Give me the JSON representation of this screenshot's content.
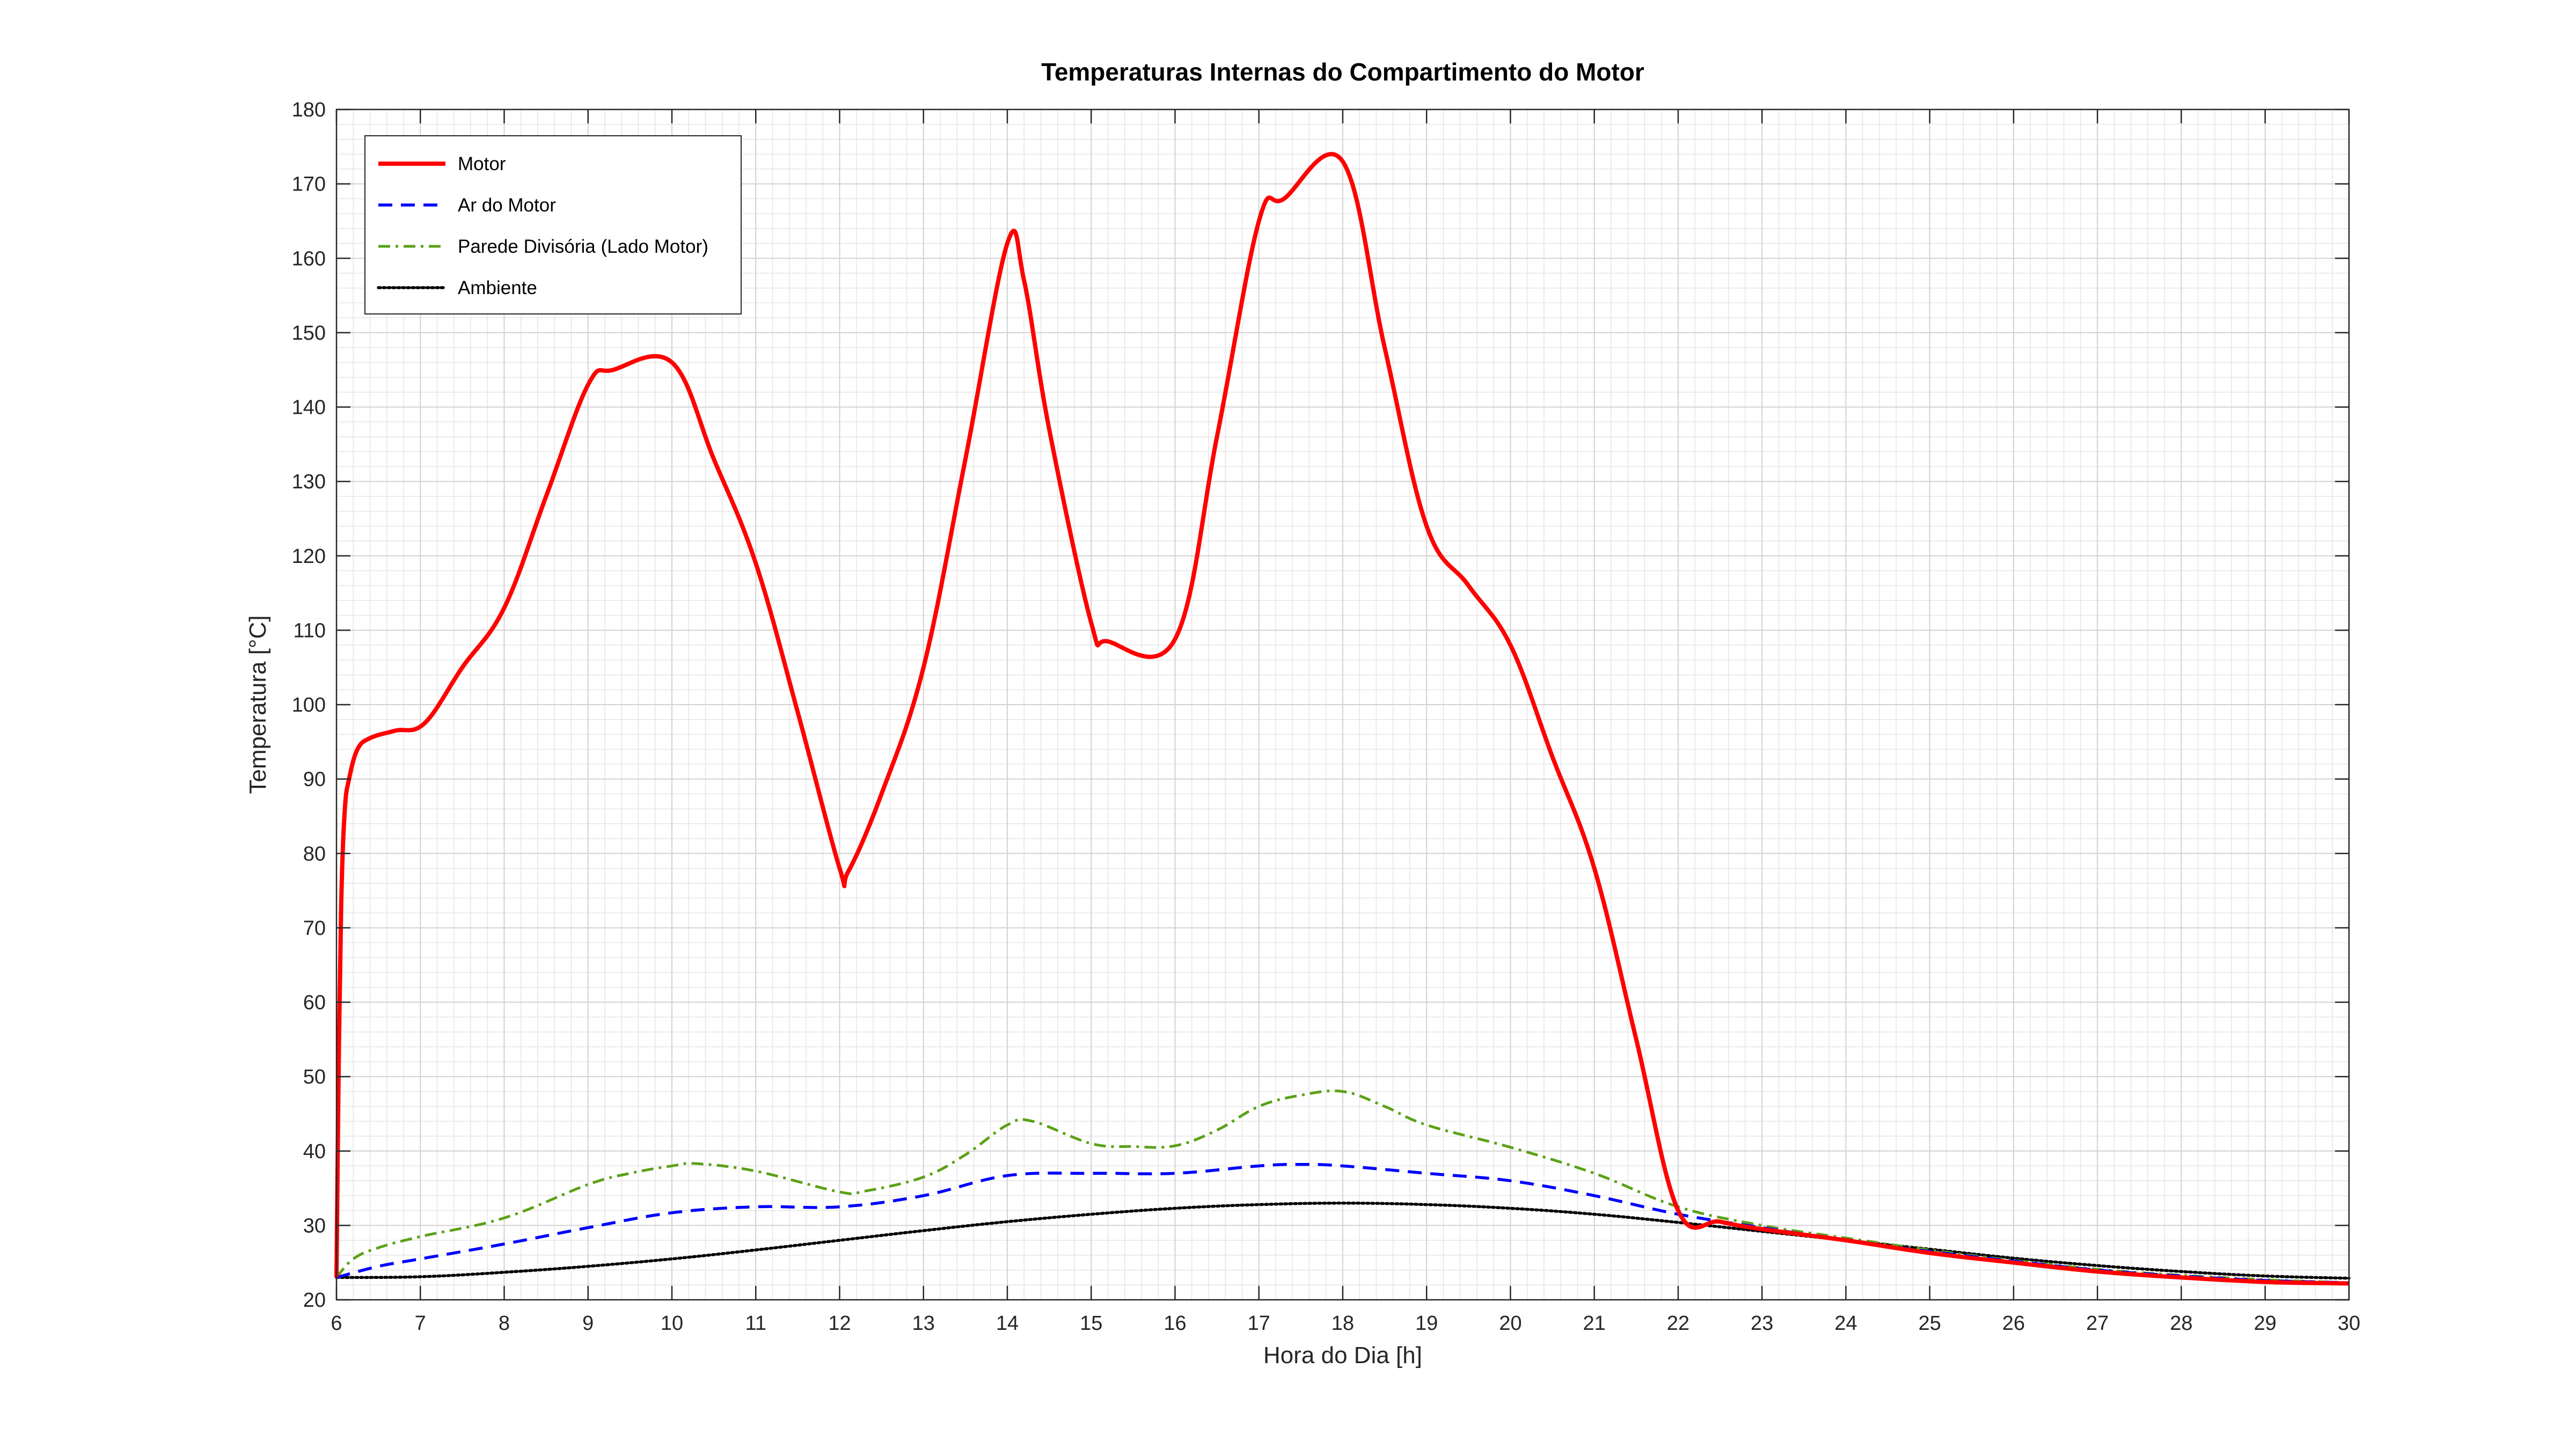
{
  "chart_data": {
    "type": "line",
    "title": "Temperaturas Internas do Compartimento do Motor",
    "xlabel": "Hora do Dia [h]",
    "ylabel": "Temperatura [°C]",
    "xlim": [
      6,
      30
    ],
    "ylim": [
      20,
      180
    ],
    "xticks": [
      6,
      7,
      8,
      9,
      10,
      11,
      12,
      13,
      14,
      15,
      16,
      17,
      18,
      19,
      20,
      21,
      22,
      23,
      24,
      25,
      26,
      27,
      28,
      29,
      30
    ],
    "yticks": [
      20,
      30,
      40,
      50,
      60,
      70,
      80,
      90,
      100,
      110,
      120,
      130,
      140,
      150,
      160,
      170,
      180
    ],
    "grid": true,
    "minor_grid": true,
    "legend_position": "top-left",
    "series": [
      {
        "name": "Motor",
        "color": "#ff0000",
        "style": "solid",
        "points": [
          [
            6,
            23
          ],
          [
            6.03,
            55
          ],
          [
            6.06,
            75
          ],
          [
            6.1,
            86
          ],
          [
            6.15,
            90
          ],
          [
            6.25,
            94
          ],
          [
            6.4,
            95.5
          ],
          [
            6.7,
            96.5
          ],
          [
            7.05,
            97.5
          ],
          [
            7.5,
            105
          ],
          [
            8,
            113
          ],
          [
            8.5,
            128
          ],
          [
            9,
            143
          ],
          [
            9.3,
            145
          ],
          [
            10,
            146
          ],
          [
            10.5,
            133
          ],
          [
            11,
            119
          ],
          [
            11.5,
            99
          ],
          [
            12,
            78
          ],
          [
            12.1,
            77.5
          ],
          [
            12.5,
            88
          ],
          [
            13,
            105
          ],
          [
            13.5,
            133
          ],
          [
            14,
            162
          ],
          [
            14.2,
            157
          ],
          [
            14.5,
            137
          ],
          [
            15,
            111
          ],
          [
            15.2,
            108.5
          ],
          [
            16,
            108.8
          ],
          [
            16.5,
            136
          ],
          [
            17,
            165
          ],
          [
            17.3,
            168
          ],
          [
            18,
            173
          ],
          [
            18.5,
            148
          ],
          [
            19,
            124
          ],
          [
            19.5,
            116
          ],
          [
            20,
            108
          ],
          [
            20.5,
            93
          ],
          [
            21,
            78
          ],
          [
            21.5,
            55
          ],
          [
            22,
            32
          ],
          [
            22.5,
            30.5
          ],
          [
            23,
            29.5
          ],
          [
            24,
            28
          ],
          [
            25,
            26.3
          ],
          [
            26,
            25
          ],
          [
            27,
            23.8
          ],
          [
            28,
            23
          ],
          [
            29,
            22.4
          ],
          [
            30,
            22.2
          ]
        ]
      },
      {
        "name": "Ar do Motor",
        "color": "#0000ff",
        "style": "dashed",
        "points": [
          [
            6,
            23
          ],
          [
            6.5,
            24.5
          ],
          [
            7,
            25.5
          ],
          [
            8,
            27.5
          ],
          [
            9,
            29.7
          ],
          [
            10,
            31.7
          ],
          [
            11,
            32.5
          ],
          [
            12,
            32.5
          ],
          [
            13,
            34
          ],
          [
            14,
            36.7
          ],
          [
            15,
            37
          ],
          [
            16,
            37
          ],
          [
            17,
            38
          ],
          [
            17.5,
            38.2
          ],
          [
            18,
            38
          ],
          [
            19,
            37
          ],
          [
            20,
            36
          ],
          [
            21,
            34
          ],
          [
            22,
            31.5
          ],
          [
            23,
            29.7
          ],
          [
            24,
            28
          ],
          [
            25,
            26.5
          ],
          [
            26,
            25.2
          ],
          [
            27,
            24
          ],
          [
            28,
            23.2
          ],
          [
            29,
            22.6
          ],
          [
            30,
            22.3
          ]
        ]
      },
      {
        "name": "Parede Divisória (Lado Motor)",
        "color": "#5ba117",
        "style": "dashdot",
        "points": [
          [
            6,
            23
          ],
          [
            6.2,
            25.5
          ],
          [
            6.5,
            27
          ],
          [
            7,
            28.5
          ],
          [
            8,
            31
          ],
          [
            9,
            35.5
          ],
          [
            9.5,
            37
          ],
          [
            10,
            38
          ],
          [
            10.3,
            38.3
          ],
          [
            11,
            37.3
          ],
          [
            12,
            34.5
          ],
          [
            12.3,
            34.6
          ],
          [
            13,
            36.5
          ],
          [
            13.5,
            39.5
          ],
          [
            14,
            43.5
          ],
          [
            14.3,
            44
          ],
          [
            15,
            41
          ],
          [
            15.5,
            40.6
          ],
          [
            16,
            40.7
          ],
          [
            16.5,
            42.8
          ],
          [
            17,
            46
          ],
          [
            17.5,
            47.5
          ],
          [
            18,
            48
          ],
          [
            18.5,
            46
          ],
          [
            19,
            43.5
          ],
          [
            20,
            40.5
          ],
          [
            21,
            37
          ],
          [
            22,
            32.5
          ],
          [
            23,
            30
          ],
          [
            24,
            28.3
          ],
          [
            25,
            26.7
          ],
          [
            26,
            25.3
          ],
          [
            27,
            24.1
          ],
          [
            28,
            23.3
          ],
          [
            29,
            22.7
          ],
          [
            30,
            22.3
          ]
        ]
      },
      {
        "name": "Ambiente",
        "color": "#000000",
        "style": "dotted",
        "points": [
          [
            6,
            23
          ],
          [
            7,
            23.1
          ],
          [
            8,
            23.7
          ],
          [
            9,
            24.5
          ],
          [
            10,
            25.5
          ],
          [
            11,
            26.7
          ],
          [
            12,
            28
          ],
          [
            13,
            29.3
          ],
          [
            14,
            30.5
          ],
          [
            15,
            31.5
          ],
          [
            16,
            32.3
          ],
          [
            17,
            32.8
          ],
          [
            18,
            33
          ],
          [
            19,
            32.8
          ],
          [
            20,
            32.3
          ],
          [
            21,
            31.5
          ],
          [
            22,
            30.4
          ],
          [
            23,
            29.2
          ],
          [
            24,
            28
          ],
          [
            25,
            26.8
          ],
          [
            26,
            25.6
          ],
          [
            27,
            24.6
          ],
          [
            28,
            23.8
          ],
          [
            29,
            23.2
          ],
          [
            30,
            22.9
          ]
        ]
      }
    ]
  }
}
